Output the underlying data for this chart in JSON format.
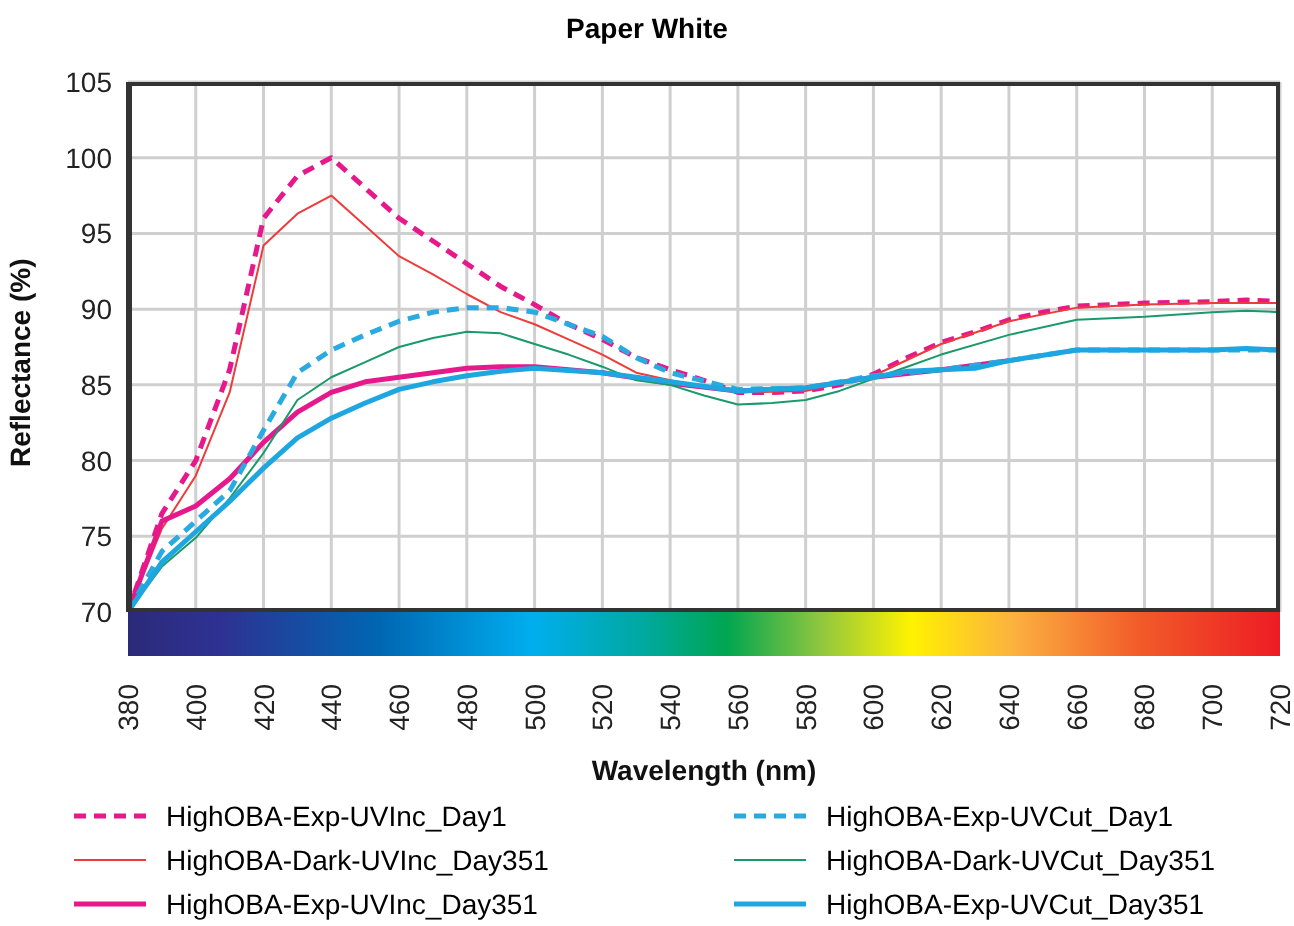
{
  "chart_data": {
    "type": "line",
    "title": "Paper White",
    "xlabel": "Wavelength (nm)",
    "ylabel": "Reflectance (%)",
    "xlim": [
      380,
      720
    ],
    "xticks": [
      380,
      400,
      420,
      440,
      460,
      480,
      500,
      520,
      540,
      560,
      580,
      600,
      620,
      640,
      660,
      680,
      700,
      720
    ],
    "ylim": [
      70,
      105
    ],
    "yticks": [
      70,
      75,
      80,
      85,
      90,
      95,
      100,
      105
    ],
    "grid": true,
    "legend": "bottom",
    "marker": "none",
    "series": [
      {
        "name": "HighOBA-Exp-UVInc_Day1",
        "color": "#e6198c",
        "line_style": "dashed",
        "x": [
          380,
          390,
          400,
          410,
          420,
          430,
          440,
          450,
          460,
          470,
          480,
          490,
          500,
          510,
          520,
          530,
          540,
          550,
          560,
          570,
          580,
          590,
          600,
          610,
          620,
          630,
          640,
          650,
          660,
          680,
          700,
          710,
          720
        ],
        "values": [
          70,
          76.5,
          80,
          86,
          96,
          98.8,
          100,
          98,
          96,
          94.5,
          93,
          91.5,
          90.3,
          89,
          88,
          86.8,
          86,
          85.3,
          84.5,
          84.5,
          84.6,
          85,
          85.7,
          86.8,
          87.8,
          88.5,
          89.3,
          89.8,
          90.2,
          90.4,
          90.5,
          90.6,
          90.5
        ]
      },
      {
        "name": "HighOBA-Dark-UVInc_Day351",
        "color": "#ee3b3b",
        "line_style": "solid",
        "x": [
          380,
          390,
          400,
          410,
          420,
          430,
          440,
          450,
          460,
          470,
          480,
          490,
          500,
          510,
          520,
          530,
          540,
          560,
          580,
          600,
          620,
          640,
          660,
          680,
          700,
          720
        ],
        "values": [
          70,
          75.5,
          79,
          84.5,
          94.2,
          96.3,
          97.5,
          95.5,
          93.5,
          92.3,
          91,
          89.8,
          89,
          88,
          87,
          85.8,
          85.3,
          84.5,
          84.6,
          85.6,
          87.7,
          89.2,
          90.1,
          90.3,
          90.4,
          90.4
        ]
      },
      {
        "name": "HighOBA-Exp-UVInc_Day351",
        "color": "#e6198c",
        "line_style": "solid",
        "x": [
          380,
          390,
          400,
          410,
          420,
          430,
          440,
          450,
          460,
          470,
          480,
          490,
          500,
          520,
          540,
          560,
          580,
          600,
          620,
          640
        ],
        "values": [
          70,
          76,
          77,
          78.8,
          81.2,
          83.2,
          84.5,
          85.2,
          85.5,
          85.8,
          86.1,
          86.2,
          86.2,
          85.8,
          85.1,
          84.6,
          84.8,
          85.5,
          86,
          86.6
        ]
      },
      {
        "name": "HighOBA-Exp-UVCut_Day1",
        "color": "#29aae1",
        "line_style": "dashed",
        "x": [
          380,
          390,
          400,
          410,
          420,
          430,
          440,
          450,
          460,
          470,
          480,
          490,
          500,
          510,
          520,
          530,
          540,
          560,
          580,
          600,
          620,
          640,
          660,
          680,
          700,
          720
        ],
        "values": [
          70,
          74,
          76,
          78,
          82,
          85.8,
          87.3,
          88.3,
          89.2,
          89.8,
          90.1,
          90.1,
          89.8,
          89,
          88.2,
          86.8,
          85.8,
          84.7,
          84.8,
          85.6,
          86,
          86.6,
          87.3,
          87.3,
          87.3,
          87.3
        ]
      },
      {
        "name": "HighOBA-Dark-UVCut_Day351",
        "color": "#1a9a6a",
        "line_style": "solid",
        "x": [
          380,
          390,
          400,
          410,
          420,
          430,
          440,
          450,
          460,
          470,
          480,
          490,
          500,
          510,
          520,
          530,
          540,
          550,
          560,
          570,
          580,
          590,
          600,
          610,
          620,
          640,
          660,
          680,
          700,
          710,
          720
        ],
        "values": [
          70,
          73,
          74.9,
          77.5,
          80.5,
          84,
          85.5,
          86.5,
          87.5,
          88.1,
          88.5,
          88.4,
          87.7,
          87,
          86.2,
          85.3,
          85,
          84.3,
          83.7,
          83.8,
          84,
          84.6,
          85.4,
          86.2,
          87,
          88.3,
          89.3,
          89.5,
          89.8,
          89.9,
          89.8
        ]
      },
      {
        "name": "HighOBA-Exp-UVCut_Day351",
        "color": "#1ea6e0",
        "line_style": "solid",
        "x": [
          380,
          390,
          400,
          410,
          420,
          430,
          440,
          450,
          460,
          470,
          480,
          490,
          500,
          520,
          540,
          560,
          580,
          600,
          610,
          620,
          630,
          640,
          660,
          680,
          700,
          710,
          720
        ],
        "values": [
          70,
          73.3,
          75.3,
          77.3,
          79.5,
          81.5,
          82.8,
          83.8,
          84.7,
          85.2,
          85.6,
          85.9,
          86.1,
          85.8,
          85.2,
          84.6,
          84.8,
          85.5,
          85.9,
          86,
          86.1,
          86.6,
          87.3,
          87.3,
          87.3,
          87.4,
          87.3
        ]
      }
    ]
  }
}
